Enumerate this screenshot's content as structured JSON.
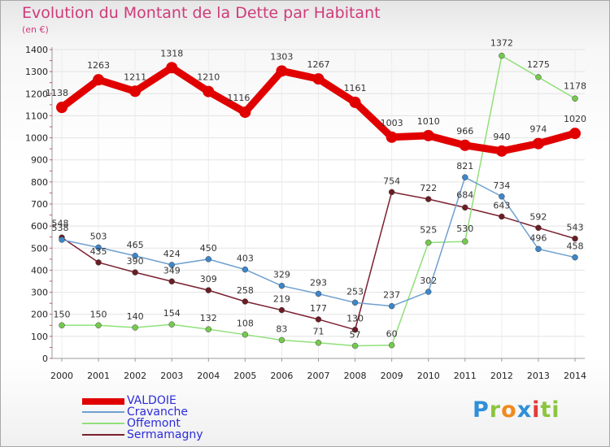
{
  "chart_data": {
    "type": "line",
    "title": "Evolution du Montant de la Dette par Habitant",
    "subtitle": "(en €)",
    "x": [
      "2000",
      "2001",
      "2002",
      "2003",
      "2004",
      "2005",
      "2006",
      "2007",
      "2008",
      "2009",
      "2010",
      "2011",
      "2012",
      "2013",
      "2014"
    ],
    "yticks": [
      "0",
      "100",
      "200",
      "300",
      "400",
      "500",
      "600",
      "700",
      "800",
      "900",
      "1000",
      "1100",
      "1200",
      "1300",
      "1400"
    ],
    "ylim": [
      0,
      1400
    ],
    "grid": true,
    "legend_position": "bottom-left",
    "series": [
      {
        "name": "VALDOIE",
        "color": "#e10000",
        "values": [
          1138,
          1263,
          1211,
          1318,
          1210,
          1116,
          1303,
          1267,
          1161,
          1003,
          1010,
          966,
          940,
          974,
          1020
        ],
        "labels": [
          "1138",
          "1263",
          "1211",
          "1318",
          "1210",
          "1116",
          "1303",
          "1267",
          "1161",
          "1003",
          "1010",
          "966",
          "940",
          "974",
          "1020"
        ]
      },
      {
        "name": "Cravanche",
        "color": "#6fa0cf",
        "marker": "#3d86c8",
        "values": [
          538,
          503,
          465,
          424,
          450,
          403,
          329,
          293,
          253,
          237,
          302,
          821,
          734,
          496,
          458
        ],
        "labels": [
          "538",
          "503",
          "465",
          "424",
          "450",
          "403",
          "329",
          "293",
          "253",
          "237",
          "302",
          "821",
          "734",
          "496",
          "458"
        ]
      },
      {
        "name": "Offemont",
        "color": "#90e07a",
        "marker": "#75c94e",
        "values": [
          150,
          150,
          140,
          154,
          132,
          108,
          83,
          71,
          57,
          60,
          525,
          530,
          1372,
          1275,
          1178
        ],
        "labels": [
          "150",
          "150",
          "140",
          "154",
          "132",
          "108",
          "83",
          "71",
          "57",
          "60",
          "525",
          "530",
          "1372",
          "1275",
          "1178"
        ]
      },
      {
        "name": "Sermamagny",
        "color": "#7a2030",
        "marker": "#6a1d24",
        "values": [
          548,
          435,
          390,
          349,
          309,
          258,
          219,
          177,
          130,
          754,
          722,
          684,
          643,
          592,
          543
        ],
        "labels": [
          "548",
          "435",
          "390",
          "349",
          "309",
          "258",
          "219",
          "177",
          "130",
          "754",
          "722",
          "684",
          "643",
          "592",
          "543"
        ]
      }
    ]
  },
  "logo": {
    "text": "Proxiti",
    "letters": [
      "P",
      "r",
      "o",
      "x",
      "i",
      "ti"
    ]
  }
}
